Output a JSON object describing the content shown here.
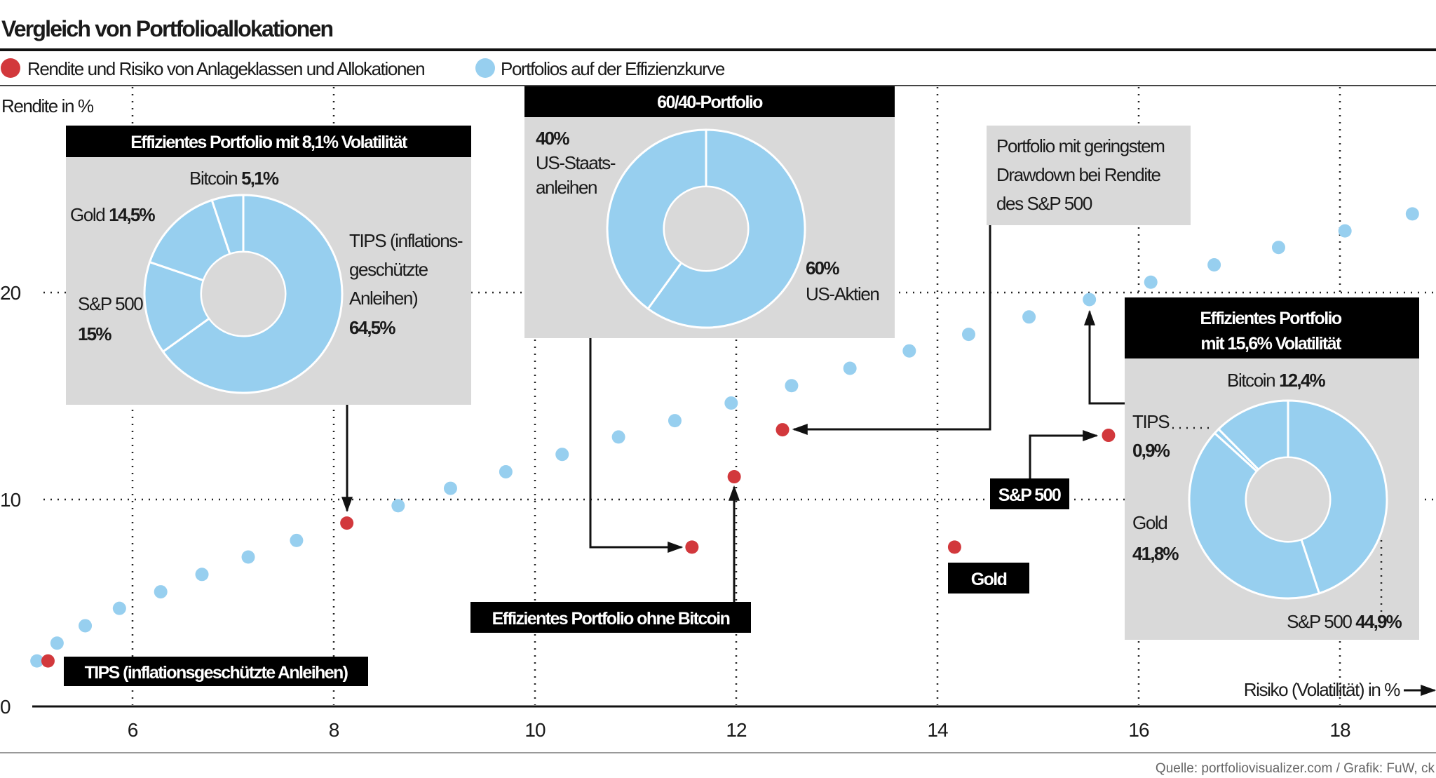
{
  "title": "Vergleich von Portfolioallokationen",
  "legend": {
    "red_label": "Rendite und Risiko von Anlageklassen und Allokationen",
    "blue_label": "Portfolios auf der Effizienzkurve"
  },
  "source": "Quelle: portfoliovisualizer.com / Grafik: FuW, ck",
  "colors": {
    "red": "#d2383c",
    "blue": "#97cfef",
    "box": "#d9d9d9",
    "label_bg": "#000000"
  },
  "chart_data": {
    "type": "scatter",
    "title": "Vergleich von Portfolioallokationen",
    "xlabel": "Risiko (Volatilität) in %",
    "ylabel": "Rendite in %",
    "xlim": [
      5,
      18.95
    ],
    "ylim": [
      0,
      30
    ],
    "xticks": [
      "6",
      "8",
      "10",
      "12",
      "14",
      "16",
      "18"
    ],
    "yticks": [
      "0",
      "10",
      "20"
    ],
    "grid": true,
    "legend_position": "top-left",
    "series": [
      {
        "name": "Portfolios auf der Effizienzkurve",
        "color": "#97cfef",
        "points": [
          [
            5.05,
            2.2
          ],
          [
            5.25,
            3.06
          ],
          [
            5.53,
            3.9
          ],
          [
            5.87,
            4.74
          ],
          [
            6.28,
            5.54
          ],
          [
            6.69,
            6.38
          ],
          [
            7.15,
            7.22
          ],
          [
            7.63,
            8.02
          ],
          [
            8.64,
            9.7
          ],
          [
            9.16,
            10.54
          ],
          [
            9.71,
            11.34
          ],
          [
            10.27,
            12.18
          ],
          [
            10.83,
            13.02
          ],
          [
            11.39,
            13.81
          ],
          [
            11.95,
            14.66
          ],
          [
            12.55,
            15.5
          ],
          [
            13.13,
            16.34
          ],
          [
            13.72,
            17.18
          ],
          [
            14.31,
            17.98
          ],
          [
            14.91,
            18.82
          ],
          [
            15.51,
            19.66
          ],
          [
            16.12,
            20.5
          ],
          [
            16.75,
            21.34
          ],
          [
            17.39,
            22.18
          ],
          [
            18.05,
            22.98
          ],
          [
            18.72,
            23.8
          ]
        ]
      },
      {
        "name": "Rendite und Risiko von Anlageklassen und Allokationen",
        "color": "#d2383c",
        "points": [
          {
            "x": 5.16,
            "y": 2.2,
            "label": "TIPS (inflationsgeschützte Anleihen)"
          },
          {
            "x": 8.13,
            "y": 8.86,
            "label": "Effizientes Portfolio mit 8,1% Volatilität"
          },
          {
            "x": 11.56,
            "y": 7.7,
            "label": "60/40-Portfolio"
          },
          {
            "x": 11.98,
            "y": 11.1,
            "label": "Effizientes Portfolio ohne Bitcoin"
          },
          {
            "x": 12.46,
            "y": 13.37,
            "label": "Portfolio mit geringstem Drawdown bei Rendite des S&P 500"
          },
          {
            "x": 14.17,
            "y": 7.7,
            "label": "Gold"
          },
          {
            "x": 15.7,
            "y": 13.1,
            "label": "S&P 500"
          }
        ]
      }
    ],
    "donuts": [
      {
        "title": "Effizientes Portfolio mit 8,1% Volatilität",
        "slices": [
          {
            "name": "TIPS (inflationsgeschützte Anleihen)",
            "lines": [
              "TIPS (inflations-",
              "geschützte",
              "Anleihen)"
            ],
            "value": 64.5,
            "value_label": "64,5%"
          },
          {
            "name": "S&P 500",
            "value": 15,
            "value_label": "15%"
          },
          {
            "name": "Gold",
            "value": 14.5,
            "value_label": "14,5%"
          },
          {
            "name": "Bitcoin",
            "value": 5.1,
            "value_label": "5,1%"
          }
        ]
      },
      {
        "title": "60/40-Portfolio",
        "slices": [
          {
            "name": "US-Aktien",
            "value": 60,
            "value_label": "60%"
          },
          {
            "name": "US-Staatsanleihen",
            "lines": [
              "US-Staats-",
              "anleihen"
            ],
            "value": 40,
            "value_label": "40%"
          }
        ]
      },
      {
        "title_lines": [
          "Effizientes Portfolio",
          "mit 15,6% Volatilität"
        ],
        "slices": [
          {
            "name": "S&P 500",
            "value": 44.9,
            "value_label": "44,9%"
          },
          {
            "name": "Gold",
            "value": 41.8,
            "value_label": "41,8%"
          },
          {
            "name": "TIPS",
            "value": 0.9,
            "value_label": "0,9%"
          },
          {
            "name": "Bitcoin",
            "value": 12.4,
            "value_label": "12,4%"
          }
        ]
      }
    ],
    "annotations": {
      "drawdown_lines": [
        "Portfolio mit geringstem",
        "Drawdown bei Rendite",
        "des S&P 500"
      ],
      "tips_label": "TIPS (inflationsgeschützte Anleihen)",
      "no_bitcoin_label": "Effizientes Portfolio ohne Bitcoin",
      "sp500_label": "S&P 500",
      "gold_label": "Gold"
    }
  }
}
